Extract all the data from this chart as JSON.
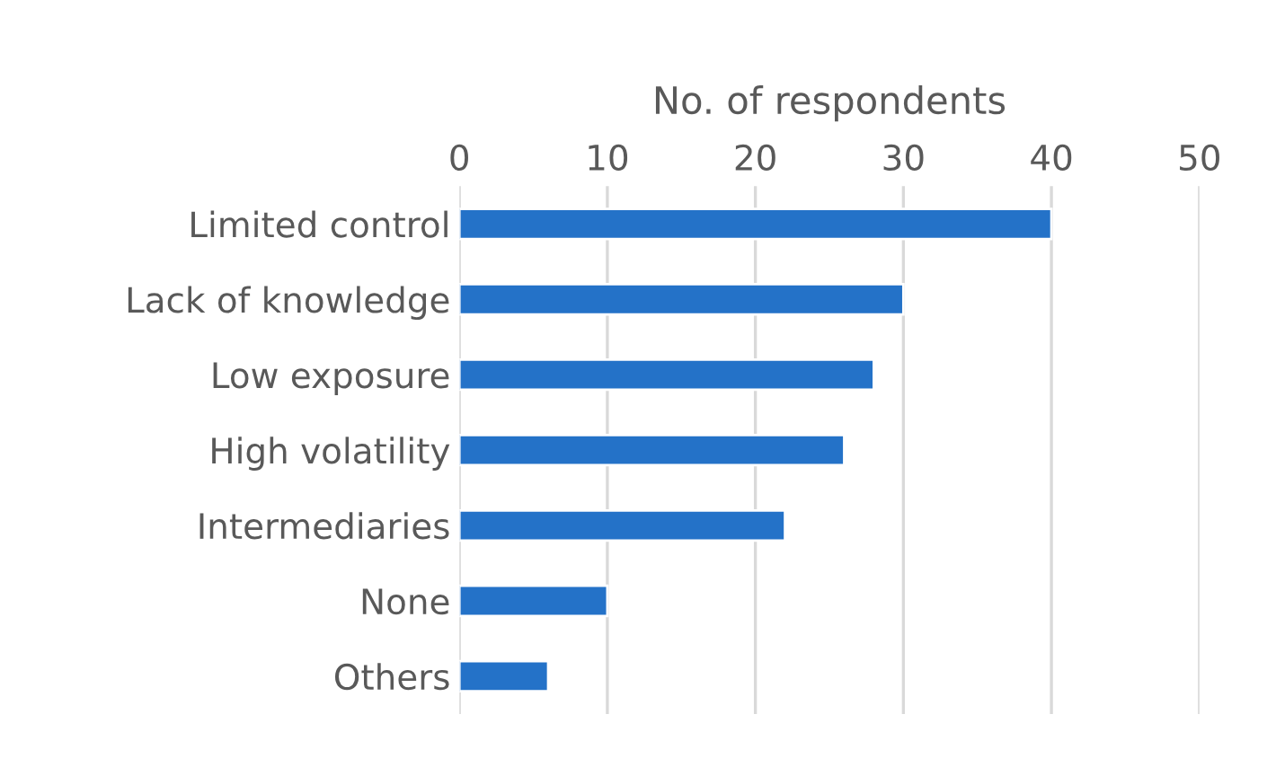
{
  "chart_data": {
    "type": "bar",
    "orientation": "horizontal",
    "xlabel": "No. of respondents",
    "categories": [
      "Limited control",
      "Lack of knowledge",
      "Low exposure",
      "High volatility",
      "Intermediaries",
      "None",
      "Others"
    ],
    "values": [
      40,
      30,
      28,
      26,
      22,
      10,
      6
    ],
    "color": "#2472c8",
    "xlim": [
      0,
      50
    ],
    "xticks": [
      0,
      10,
      20,
      30,
      40,
      50
    ],
    "grid": "x"
  }
}
